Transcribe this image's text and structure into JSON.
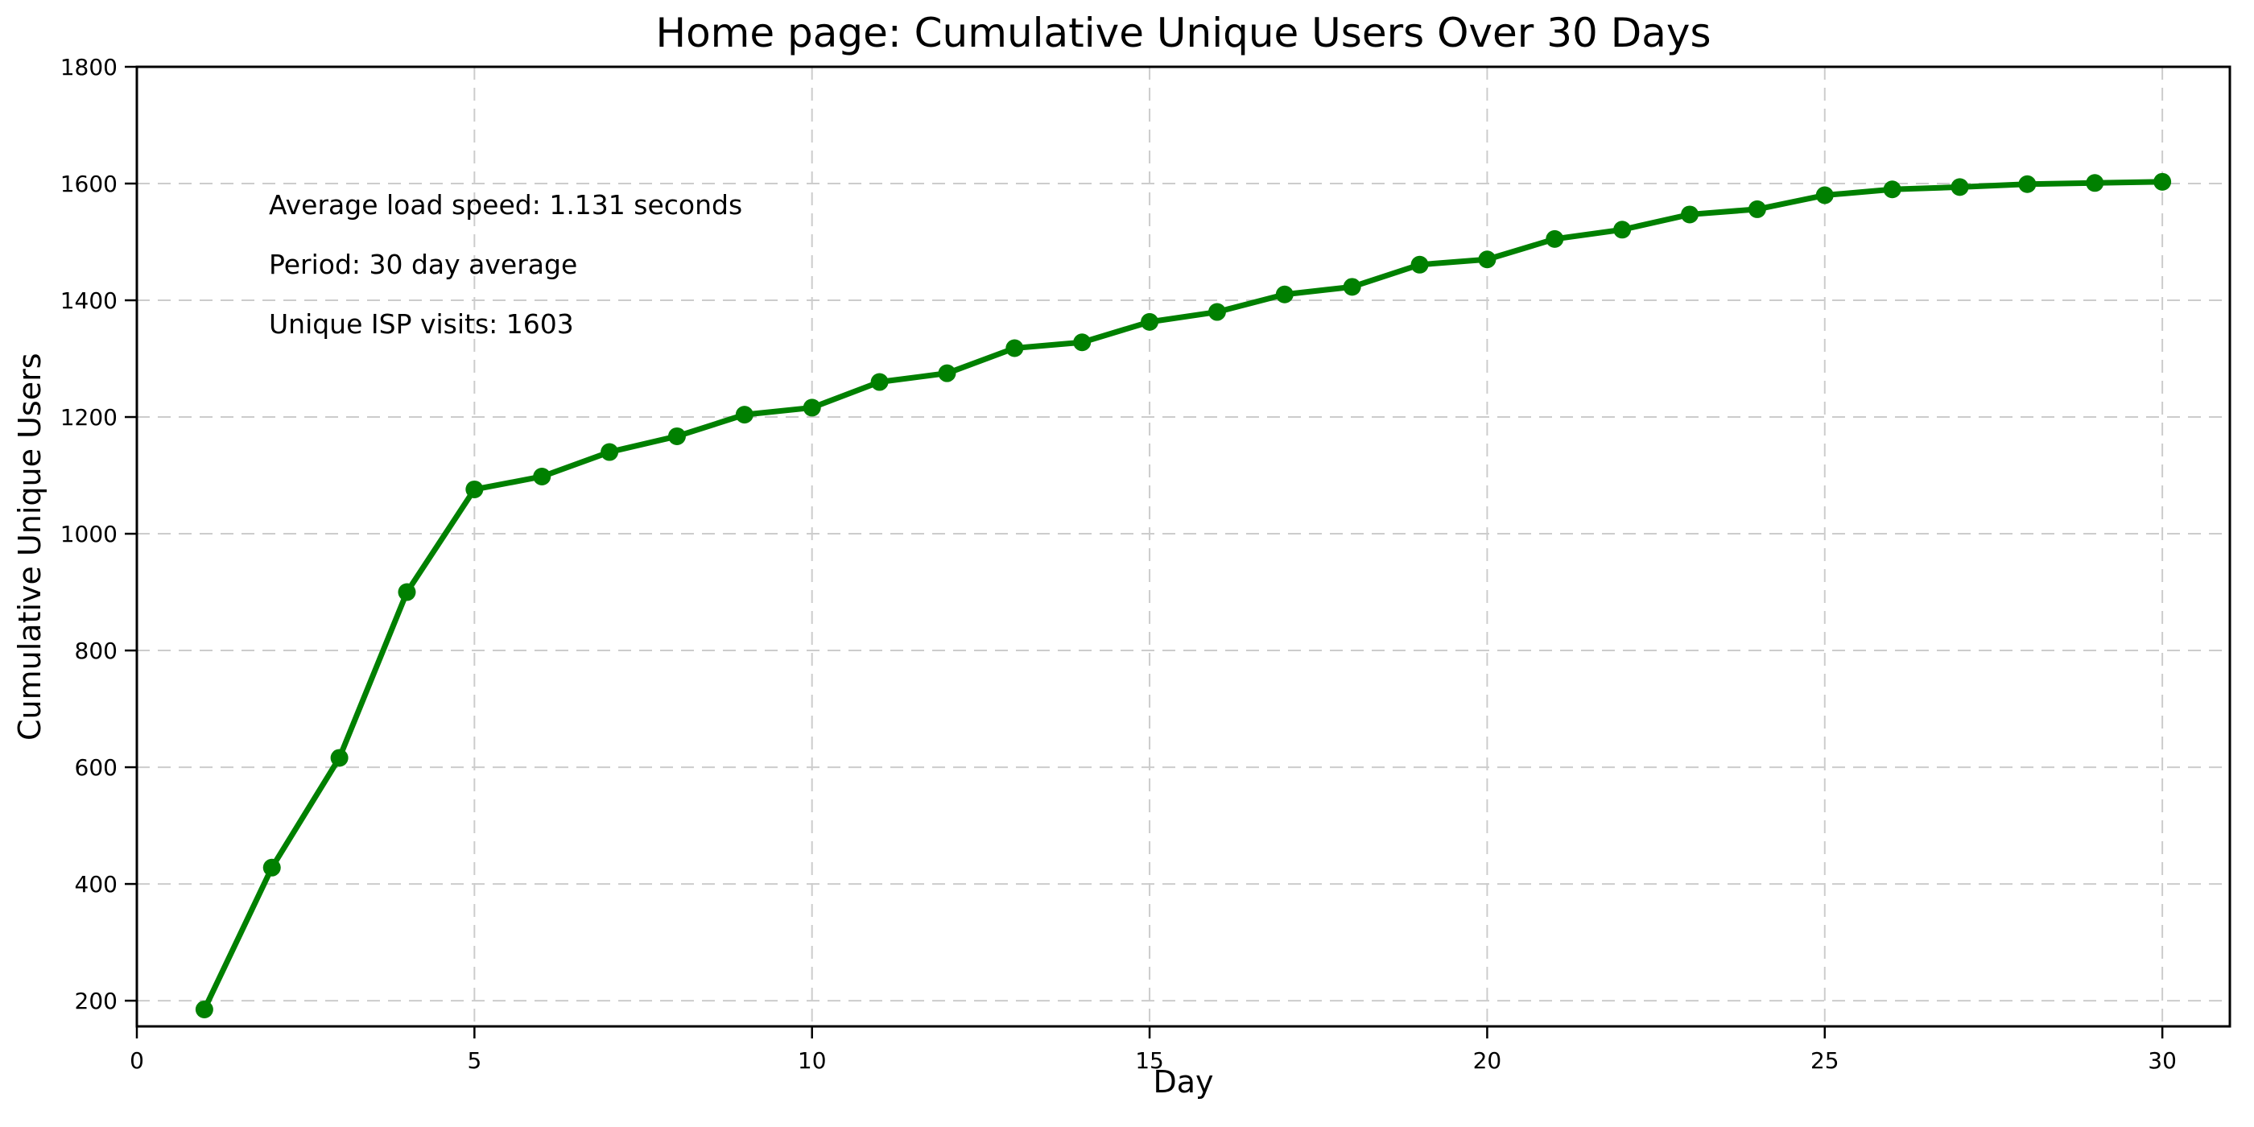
{
  "title": "Home page: Cumulative Unique Users Over 30 Days",
  "axes": {
    "xlabel": "Day",
    "ylabel": "Cumulative Unique Users"
  },
  "annotations": [
    "Average load speed: 1.131 seconds",
    "Period: 30 day average",
    "Unique ISP visits: 1603"
  ],
  "chart_data": {
    "type": "line",
    "title": "Home page: Cumulative Unique Users Over 30 Days",
    "xlabel": "Day",
    "ylabel": "Cumulative Unique Users",
    "x": [
      1,
      2,
      3,
      4,
      5,
      6,
      7,
      8,
      9,
      10,
      11,
      12,
      13,
      14,
      15,
      16,
      17,
      18,
      19,
      20,
      21,
      22,
      23,
      24,
      25,
      26,
      27,
      28,
      29,
      30
    ],
    "y": [
      185,
      428,
      616,
      900,
      1076,
      1098,
      1140,
      1167,
      1204,
      1216,
      1260,
      1275,
      1318,
      1328,
      1363,
      1380,
      1410,
      1423,
      1461,
      1470,
      1505,
      1521,
      1547,
      1556,
      1580,
      1590,
      1594,
      1599,
      1601,
      1603
    ],
    "xlim": [
      0,
      31
    ],
    "ylim": [
      156,
      1800
    ],
    "xticks": [
      0,
      5,
      10,
      15,
      20,
      25,
      30
    ],
    "yticks": [
      200,
      400,
      600,
      800,
      1000,
      1200,
      1400,
      1600,
      1800
    ],
    "grid": true,
    "grid_style": "dashed",
    "grid_color": "#cccccc",
    "line_color": "#008000",
    "marker": "circle",
    "legend": "none",
    "annotations": [
      {
        "text": "Average load speed: 1.131 seconds"
      },
      {
        "text": "Period: 30 day average"
      },
      {
        "text": "Unique ISP visits: 1603"
      }
    ]
  },
  "colors": {
    "line": "#008000",
    "grid": "#cccccc",
    "spine": "#000000",
    "background": "#ffffff"
  }
}
